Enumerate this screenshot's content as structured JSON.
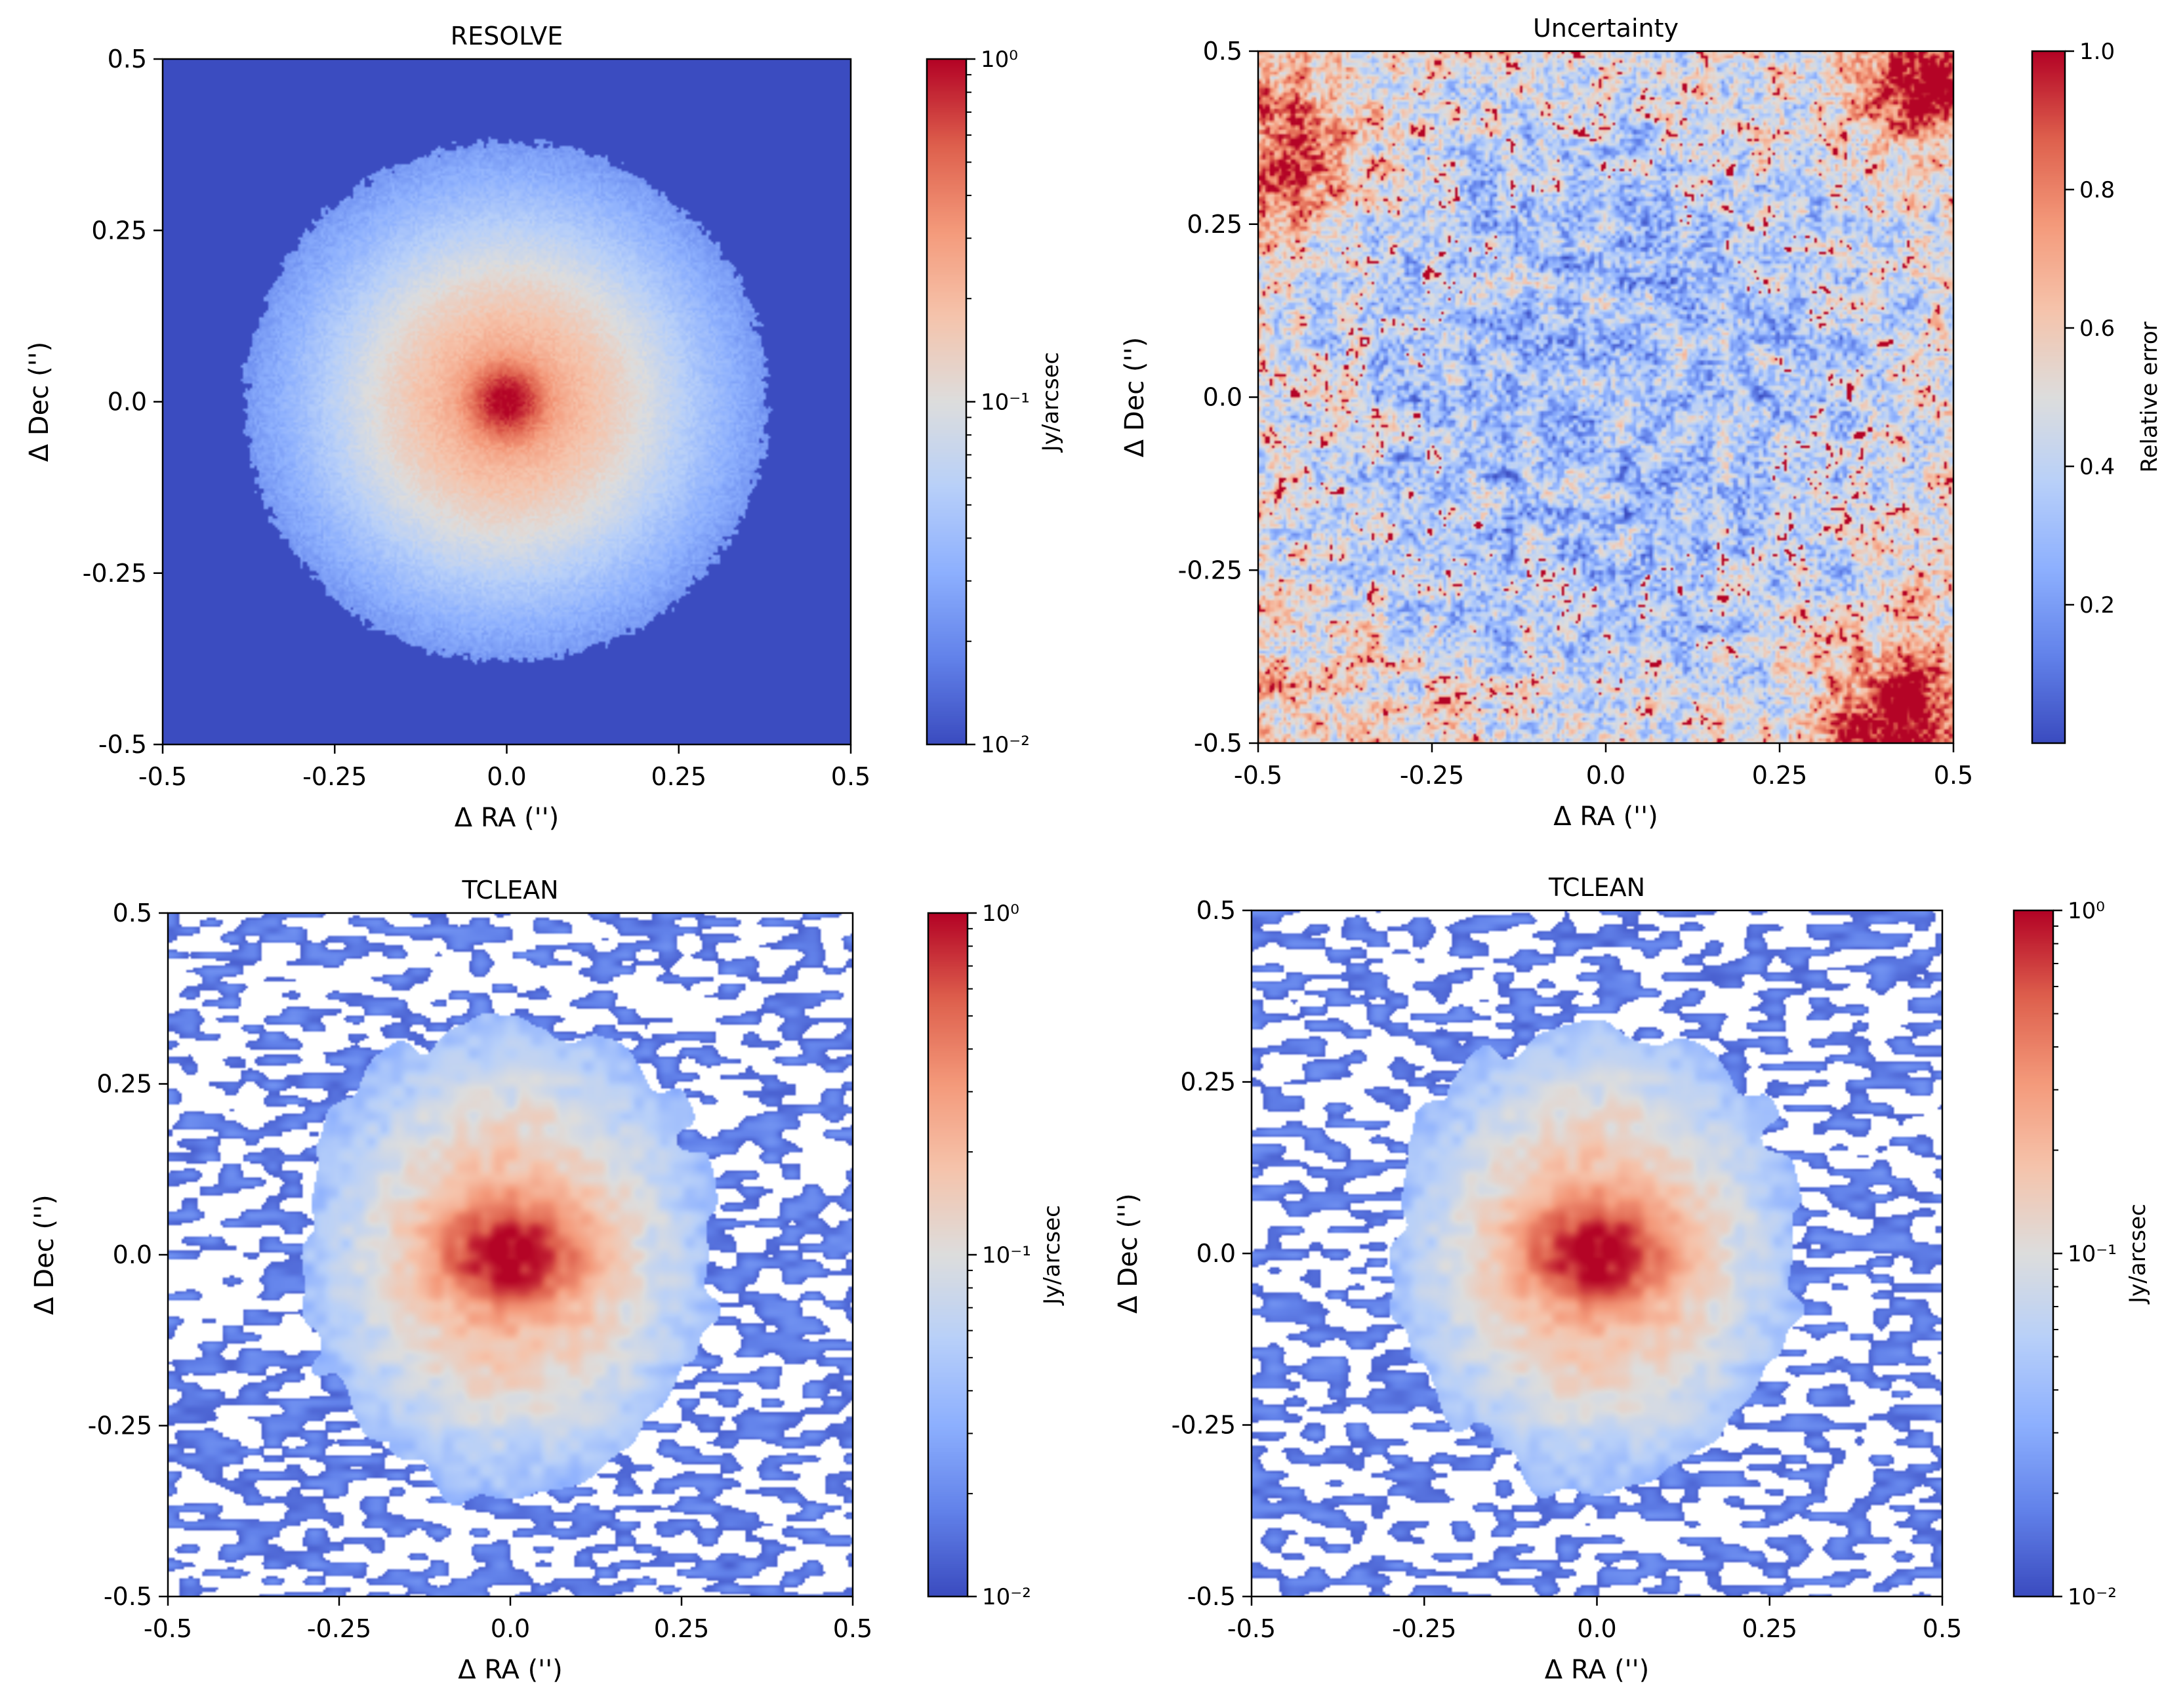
{
  "figure": {
    "ra_label": "Δ RA ('')",
    "dec_label": "Δ Dec ('')"
  },
  "colormaps": {
    "coolwarm": [
      "#3b4cc0",
      "#6282ea",
      "#8db0fe",
      "#b8d0f9",
      "#dddddd",
      "#f5c4ac",
      "#f49a7b",
      "#de604d",
      "#b40426"
    ]
  },
  "chart_data": [
    {
      "type": "heatmap",
      "id": "resolve",
      "title": "RESOLVE",
      "xlabel": "Δ RA ('')",
      "ylabel": "Δ Dec ('')",
      "xlim": [
        -0.5,
        0.5
      ],
      "ylim": [
        -0.5,
        0.5
      ],
      "x_ticks": [
        -0.5,
        -0.25,
        0.0,
        0.25,
        0.5
      ],
      "x_tick_labels": [
        "-0.5",
        "-0.25",
        "0.0",
        "0.25",
        "0.5"
      ],
      "y_ticks": [
        0.5,
        0.25,
        0.0,
        -0.25,
        -0.5
      ],
      "y_tick_labels": [
        "0.5",
        "0.25",
        "0.0",
        "-0.25",
        "-0.5"
      ],
      "colorbar": {
        "label": "Jy/arcsec",
        "scale": "log",
        "range": [
          0.01,
          1.0
        ],
        "tick_values": [
          1.0,
          0.1,
          0.01
        ],
        "tick_labels": [
          "10⁰",
          "10⁻¹",
          "10⁻²"
        ]
      },
      "image_model": {
        "kind": "disk",
        "background_value": 0.01,
        "peak_value": 1.0,
        "disk_edge_radius": 0.38,
        "core_radius": 0.03,
        "outside_blank": false
      }
    },
    {
      "type": "heatmap",
      "id": "uncertainty",
      "title": "Uncertainty",
      "xlabel": "Δ RA ('')",
      "ylabel": "Δ Dec ('')",
      "xlim": [
        -0.5,
        0.5
      ],
      "ylim": [
        -0.5,
        0.5
      ],
      "x_ticks": [
        -0.5,
        -0.25,
        0.0,
        0.25,
        0.5
      ],
      "x_tick_labels": [
        "-0.5",
        "-0.25",
        "0.0",
        "0.25",
        "0.5"
      ],
      "y_ticks": [
        0.5,
        0.25,
        0.0,
        -0.25,
        -0.5
      ],
      "y_tick_labels": [
        "0.5",
        "0.25",
        "0.0",
        "-0.25",
        "-0.5"
      ],
      "colorbar": {
        "label": "Relative error",
        "scale": "linear",
        "range": [
          0.0,
          1.0
        ],
        "tick_values": [
          1.0,
          0.8,
          0.6,
          0.4,
          0.2
        ],
        "tick_labels": [
          "1.0",
          "0.8",
          "0.6",
          "0.4",
          "0.2"
        ]
      },
      "image_model": {
        "kind": "noise",
        "center_value": 0.3,
        "edge_value": 0.7,
        "high_error_corners": [
          "top-right",
          "bottom-right",
          "top-left"
        ]
      }
    },
    {
      "type": "heatmap",
      "id": "tclean-1",
      "title": "TCLEAN",
      "xlabel": "Δ RA ('')",
      "ylabel": "Δ Dec ('')",
      "xlim": [
        -0.5,
        0.5
      ],
      "ylim": [
        -0.5,
        0.5
      ],
      "x_ticks": [
        -0.5,
        -0.25,
        0.0,
        0.25,
        0.5
      ],
      "x_tick_labels": [
        "-0.5",
        "-0.25",
        "0.0",
        "0.25",
        "0.5"
      ],
      "y_ticks": [
        0.5,
        0.25,
        0.0,
        -0.25,
        -0.5
      ],
      "y_tick_labels": [
        "0.5",
        "0.25",
        "0.0",
        "-0.25",
        "-0.5"
      ],
      "colorbar": {
        "label": "Jy/arcsec",
        "scale": "log",
        "range": [
          0.01,
          1.0
        ],
        "tick_values": [
          1.0,
          0.1,
          0.01
        ],
        "tick_labels": [
          "10⁰",
          "10⁻¹",
          "10⁻²"
        ]
      },
      "image_model": {
        "kind": "clean",
        "background_value": 0.01,
        "peak_value": 1.0,
        "disk_edge_radius": 0.32,
        "core_radius": 0.04,
        "outside_blank": true
      }
    },
    {
      "type": "heatmap",
      "id": "tclean-2",
      "title": "TCLEAN",
      "xlabel": "Δ RA ('')",
      "ylabel": "Δ Dec ('')",
      "xlim": [
        -0.5,
        0.5
      ],
      "ylim": [
        -0.5,
        0.5
      ],
      "x_ticks": [
        -0.5,
        -0.25,
        0.0,
        0.25,
        0.5
      ],
      "x_tick_labels": [
        "-0.5",
        "-0.25",
        "0.0",
        "0.25",
        "0.5"
      ],
      "y_ticks": [
        0.5,
        0.25,
        0.0,
        -0.25,
        -0.5
      ],
      "y_tick_labels": [
        "0.5",
        "0.25",
        "0.0",
        "-0.25",
        "-0.5"
      ],
      "colorbar": {
        "label": "Jy/arcsec",
        "scale": "log",
        "range": [
          0.01,
          1.0
        ],
        "tick_values": [
          1.0,
          0.1,
          0.01
        ],
        "tick_labels": [
          "10⁰",
          "10⁻¹",
          "10⁻²"
        ]
      },
      "image_model": {
        "kind": "clean",
        "background_value": 0.01,
        "peak_value": 1.0,
        "disk_edge_radius": 0.31,
        "core_radius": 0.04,
        "outside_blank": true
      }
    }
  ]
}
